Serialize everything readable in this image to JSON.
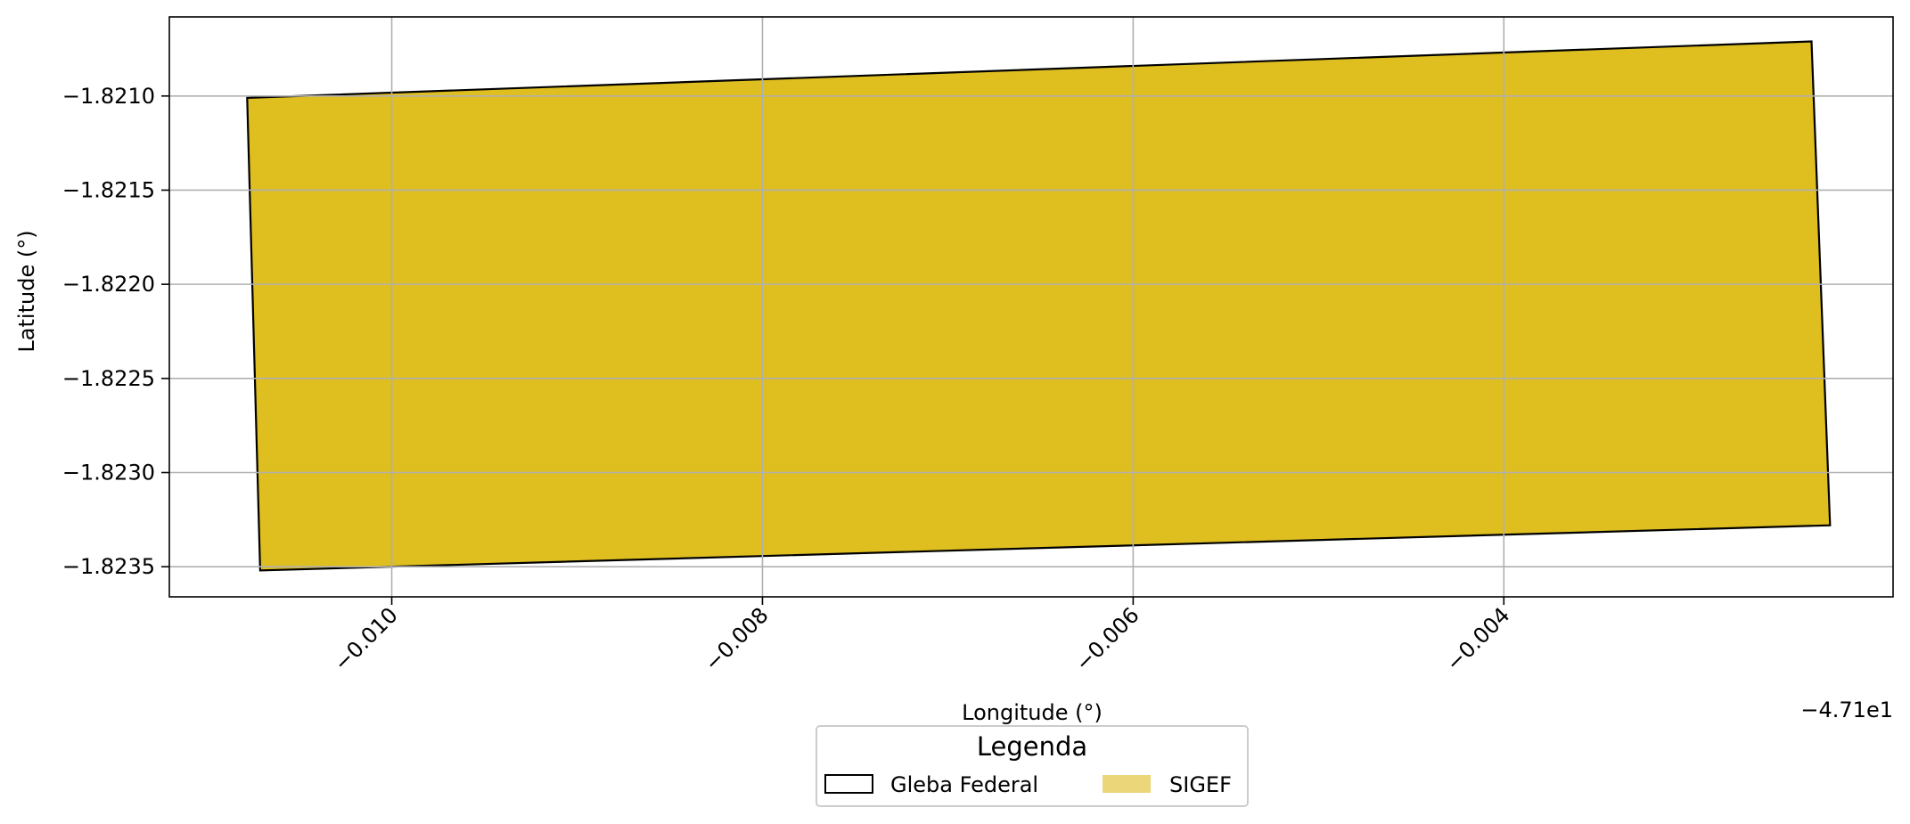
{
  "chart_data": {
    "type": "area",
    "xlabel": "Longitude (°)",
    "ylabel": "Latitude (°)",
    "x_offset_label": "−4.71e1",
    "xlim": [
      -47.1112,
      -47.1019
    ],
    "ylim": [
      -1.82366,
      -1.82058
    ],
    "x_ticks": [
      {
        "value": -47.11,
        "label": "−0.010"
      },
      {
        "value": -47.108,
        "label": "−0.008"
      },
      {
        "value": -47.106,
        "label": "−0.006"
      },
      {
        "value": -47.104,
        "label": "−0.004"
      }
    ],
    "y_ticks": [
      {
        "value": -1.821,
        "label": "−1.8210"
      },
      {
        "value": -1.8215,
        "label": "−1.8215"
      },
      {
        "value": -1.822,
        "label": "−1.8220"
      },
      {
        "value": -1.8225,
        "label": "−1.8225"
      },
      {
        "value": -1.823,
        "label": "−1.8230"
      },
      {
        "value": -1.8235,
        "label": "−1.8235"
      }
    ],
    "grid": true,
    "legend": {
      "title": "Legenda",
      "placement": "bottom-center",
      "entries": [
        {
          "label": "Gleba Federal",
          "style": "outline",
          "edge_color": "#000000",
          "face_color": "none"
        },
        {
          "label": "SIGEF",
          "style": "fill",
          "face_color": "#dfbe20",
          "alpha": 0.6
        }
      ]
    },
    "polygons": [
      {
        "name": "Gleba Federal / SIGEF",
        "face_color": "#dfbe20",
        "edge_color": "#000000",
        "vertices": [
          {
            "x": -47.11078,
            "y": -1.82101
          },
          {
            "x": -47.10234,
            "y": -1.82071
          },
          {
            "x": -47.10224,
            "y": -1.82328
          },
          {
            "x": -47.11071,
            "y": -1.82352
          }
        ]
      }
    ]
  }
}
